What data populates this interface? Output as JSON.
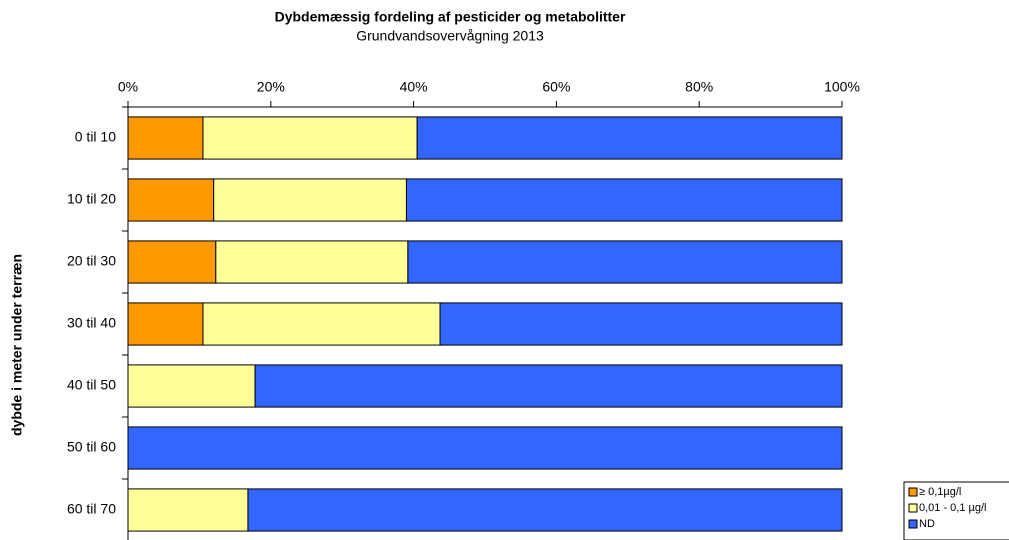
{
  "chart_data": {
    "type": "stacked_bar_horizontal",
    "title": "Dybdemæssig fordeling af pesticider og metabolitter",
    "subtitle": "Grundvandsovervågning 2013",
    "y_label": "dybde i meter under terræn",
    "categories": [
      "0 til 10",
      "10 til 20",
      "20 til 30",
      "30 til 40",
      "40 til 50",
      "50 til 60",
      "60 til 70"
    ],
    "series": [
      {
        "name": "≥ 0,1µg/l",
        "color": "#ff9900",
        "values": [
          10.5,
          12,
          12.3,
          10.5,
          0,
          0,
          0
        ]
      },
      {
        "name": "0,01 - 0,1 µg/l",
        "color": "#ffff99",
        "values": [
          30,
          27,
          26.9,
          33.2,
          17.8,
          0,
          16.8
        ]
      },
      {
        "name": "ND",
        "color": "#3366ff",
        "values": [
          59.5,
          61,
          60.8,
          56.3,
          82.2,
          100,
          83.2
        ]
      }
    ],
    "xlim": [
      0,
      100
    ],
    "xticks": [
      {
        "value": 0,
        "label": "0%"
      },
      {
        "value": 20,
        "label": "20%"
      },
      {
        "value": 40,
        "label": "40%"
      },
      {
        "value": 60,
        "label": "60%"
      },
      {
        "value": 80,
        "label": "80%"
      },
      {
        "value": 100,
        "label": "100%"
      }
    ],
    "legend": "bottom-right"
  }
}
